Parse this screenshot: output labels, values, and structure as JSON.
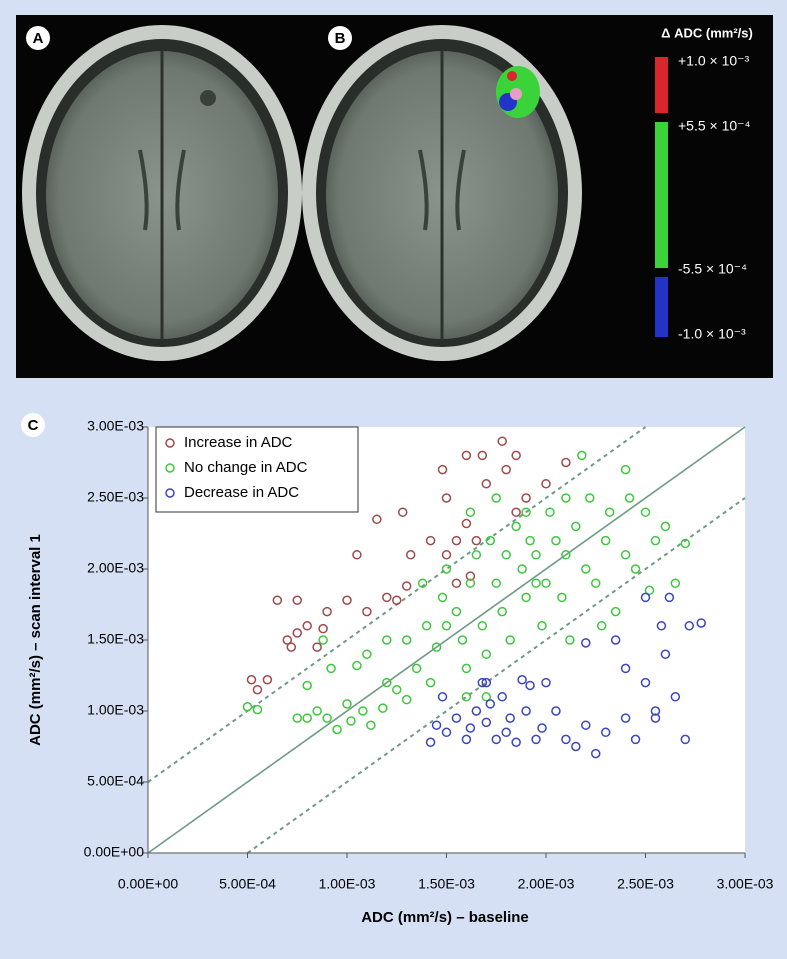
{
  "image_panel": {
    "labels": [
      "A",
      "B"
    ],
    "colorbar": {
      "title": "Δ ADC (mm²/s)",
      "colors": [
        "#d8262b",
        "#3ad43a",
        "#2333c8"
      ],
      "ticks": [
        "+1.0 × 10⁻³",
        "+5.5 × 10⁻⁴",
        "-5.5 × 10⁻⁴",
        "-1.0 × 10⁻³"
      ]
    }
  },
  "chart_data": {
    "type": "scatter",
    "label": "C",
    "x_label": "ADC (mm²/s) – baseline",
    "y_label": "ADC (mm²/s) – scan interval 1",
    "xlim": [
      0,
      0.003
    ],
    "ylim": [
      0,
      0.003
    ],
    "xticks": [
      {
        "value": 0,
        "label": "0.00E+00"
      },
      {
        "value": 0.0005,
        "label": "5.00E-04"
      },
      {
        "value": 0.001,
        "label": "1.00E-03"
      },
      {
        "value": 0.0015,
        "label": "1.50E-03"
      },
      {
        "value": 0.002,
        "label": "2.00E-03"
      },
      {
        "value": 0.0025,
        "label": "2.50E-03"
      },
      {
        "value": 0.003,
        "label": "3.00E-03"
      }
    ],
    "yticks": [
      {
        "value": 0,
        "label": "0.00E+00"
      },
      {
        "value": 0.0005,
        "label": "5.00E-04"
      },
      {
        "value": 0.001,
        "label": "1.00E-03"
      },
      {
        "value": 0.0015,
        "label": "1.50E-03"
      },
      {
        "value": 0.002,
        "label": "2.00E-03"
      },
      {
        "value": 0.0025,
        "label": "2.50E-03"
      },
      {
        "value": 0.003,
        "label": "3.00E-03"
      }
    ],
    "legend": "upper left",
    "series": [
      {
        "name": "Increase in ADC",
        "color": "#a0484a",
        "x": [
          0.00052,
          0.00055,
          0.0006,
          0.00065,
          0.0007,
          0.00072,
          0.00075,
          0.0008,
          0.00085,
          0.0009,
          0.00088,
          0.00075,
          0.00105,
          0.001,
          0.0011,
          0.0012,
          0.00115,
          0.0013,
          0.00125,
          0.00132,
          0.00128,
          0.00142,
          0.0015,
          0.00155,
          0.0016,
          0.0015,
          0.00148,
          0.0016,
          0.00168,
          0.0017,
          0.00178,
          0.0018,
          0.00185,
          0.0019,
          0.002,
          0.0021,
          0.00185,
          0.00162,
          0.00155,
          0.00165
        ],
        "y": [
          0.00122,
          0.00115,
          0.00122,
          0.00178,
          0.0015,
          0.00145,
          0.00155,
          0.0016,
          0.00145,
          0.0017,
          0.00158,
          0.00178,
          0.0021,
          0.00178,
          0.0017,
          0.0018,
          0.00235,
          0.00188,
          0.00178,
          0.0021,
          0.0024,
          0.0022,
          0.0021,
          0.0022,
          0.00232,
          0.0025,
          0.0027,
          0.0028,
          0.0028,
          0.0026,
          0.0029,
          0.0027,
          0.0028,
          0.0025,
          0.0026,
          0.00275,
          0.0024,
          0.00195,
          0.0019,
          0.0022
        ]
      },
      {
        "name": "No change in ADC",
        "color": "#3cc83c",
        "x": [
          0.0005,
          0.00055,
          0.00075,
          0.0008,
          0.00085,
          0.0009,
          0.00092,
          0.00095,
          0.001,
          0.00102,
          0.00108,
          0.0011,
          0.00112,
          0.00118,
          0.0012,
          0.00125,
          0.0013,
          0.00135,
          0.0014,
          0.00145,
          0.00148,
          0.0015,
          0.00155,
          0.00158,
          0.0016,
          0.00162,
          0.00165,
          0.00168,
          0.0017,
          0.00172,
          0.00175,
          0.00178,
          0.0018,
          0.00182,
          0.00185,
          0.00188,
          0.0019,
          0.00192,
          0.00195,
          0.00198,
          0.002,
          0.00202,
          0.00205,
          0.00208,
          0.0021,
          0.00212,
          0.00215,
          0.0022,
          0.00222,
          0.00225,
          0.0023,
          0.00232,
          0.00235,
          0.0024,
          0.00242,
          0.00245,
          0.0025,
          0.00255,
          0.0026,
          0.00265,
          0.0027,
          0.0024,
          0.00218,
          0.0019,
          0.0012,
          0.0013,
          0.00142,
          0.00088,
          0.00105,
          0.00138,
          0.00162,
          0.0017,
          0.0016,
          0.00175,
          0.00228,
          0.00252,
          0.0008,
          0.0015,
          0.00195,
          0.0021
        ],
        "y": [
          0.00103,
          0.00101,
          0.00095,
          0.00118,
          0.001,
          0.00095,
          0.0013,
          0.00087,
          0.00105,
          0.00093,
          0.001,
          0.0014,
          0.0009,
          0.00102,
          0.0015,
          0.00115,
          0.00108,
          0.0013,
          0.0016,
          0.00145,
          0.0018,
          0.002,
          0.0017,
          0.0015,
          0.0013,
          0.0019,
          0.0021,
          0.0016,
          0.0014,
          0.0022,
          0.0019,
          0.0017,
          0.0021,
          0.0015,
          0.0023,
          0.002,
          0.0018,
          0.0022,
          0.0021,
          0.0016,
          0.0019,
          0.0024,
          0.0022,
          0.0018,
          0.0021,
          0.0015,
          0.0023,
          0.002,
          0.0025,
          0.0019,
          0.0022,
          0.0024,
          0.0017,
          0.0021,
          0.0025,
          0.002,
          0.0024,
          0.0022,
          0.0023,
          0.0019,
          0.00218,
          0.0027,
          0.0028,
          0.0024,
          0.0012,
          0.0015,
          0.0012,
          0.0015,
          0.00132,
          0.0019,
          0.0024,
          0.0011,
          0.0011,
          0.0025,
          0.0016,
          0.00185,
          0.00095,
          0.0016,
          0.0019,
          0.0025
        ]
      },
      {
        "name": "Decrease in ADC",
        "color": "#3a44c0",
        "x": [
          0.00142,
          0.00145,
          0.0015,
          0.00155,
          0.0016,
          0.00162,
          0.00165,
          0.00168,
          0.0017,
          0.00172,
          0.00175,
          0.00178,
          0.0018,
          0.00182,
          0.00185,
          0.00188,
          0.0019,
          0.00192,
          0.00195,
          0.00198,
          0.002,
          0.00205,
          0.0021,
          0.00215,
          0.0022,
          0.00225,
          0.0023,
          0.00235,
          0.0024,
          0.00245,
          0.0025,
          0.0024,
          0.00255,
          0.0026,
          0.00262,
          0.00265,
          0.0027,
          0.00272,
          0.00278,
          0.0025,
          0.00258,
          0.0022,
          0.00255,
          0.00148,
          0.0017
        ],
        "y": [
          0.00078,
          0.0009,
          0.00085,
          0.00095,
          0.0008,
          0.00088,
          0.001,
          0.0012,
          0.00092,
          0.00105,
          0.0008,
          0.0011,
          0.00085,
          0.00095,
          0.00078,
          0.00122,
          0.001,
          0.00118,
          0.0008,
          0.00088,
          0.0012,
          0.001,
          0.0008,
          0.00075,
          0.0009,
          0.0007,
          0.00085,
          0.0015,
          0.00095,
          0.0008,
          0.0012,
          0.0013,
          0.00095,
          0.0014,
          0.0018,
          0.0011,
          0.0008,
          0.0016,
          0.00162,
          0.0018,
          0.0016,
          0.00148,
          0.001,
          0.0011,
          0.0012
        ]
      }
    ]
  }
}
